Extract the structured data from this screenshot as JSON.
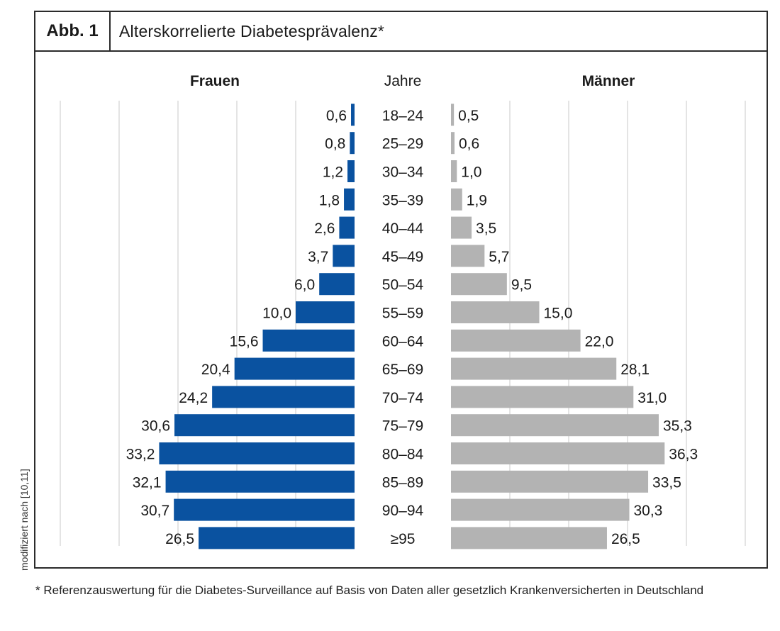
{
  "figure": {
    "label": "Abb. 1",
    "title": "Alterskorrelierte Diabetesprävalenz*"
  },
  "side_note": "modifiziert nach [10,11]",
  "footnote": "* Referenzauswertung für die Diabetes-Surveillance auf Basis von Daten aller gesetzlich Krankenversicherten in Deutschland",
  "chart_data": {
    "type": "bar",
    "title": "Alterskorrelierte Diabetesprävalenz*",
    "category_header": "Jahre",
    "categories": [
      "18–24",
      "25–29",
      "30–34",
      "35–39",
      "40–44",
      "45–49",
      "50–54",
      "55–59",
      "60–64",
      "65–69",
      "70–74",
      "75–79",
      "80–84",
      "85–89",
      "90–94",
      "≥95"
    ],
    "series": [
      {
        "name": "Frauen",
        "direction": "left",
        "color": "#0a52a0",
        "values": [
          0.6,
          0.8,
          1.2,
          1.8,
          2.6,
          3.7,
          6.0,
          10.0,
          15.6,
          20.4,
          24.2,
          30.6,
          33.2,
          32.1,
          30.7,
          26.5
        ],
        "labels": [
          "0,6",
          "0,8",
          "1,2",
          "1,8",
          "2,6",
          "3,7",
          "6,0",
          "10,0",
          "15,6",
          "20,4",
          "24,2",
          "30,6",
          "33,2",
          "32,1",
          "30,7",
          "26,5"
        ]
      },
      {
        "name": "Männer",
        "direction": "right",
        "color": "#b3b3b3",
        "values": [
          0.5,
          0.6,
          1.0,
          1.9,
          3.5,
          5.7,
          9.5,
          15.0,
          22.0,
          28.1,
          31.0,
          35.3,
          36.3,
          33.5,
          30.3,
          26.5
        ],
        "labels": [
          "0,5",
          "0,6",
          "1,0",
          "1,9",
          "3,5",
          "5,7",
          "9,5",
          "15,0",
          "22,0",
          "28,1",
          "31,0",
          "35,3",
          "36,3",
          "33,5",
          "30,3",
          "26,5"
        ]
      }
    ],
    "xlim": [
      0,
      50
    ],
    "grid": true,
    "gridlines_every": 10,
    "gridline_color": "#c8c8c8"
  }
}
